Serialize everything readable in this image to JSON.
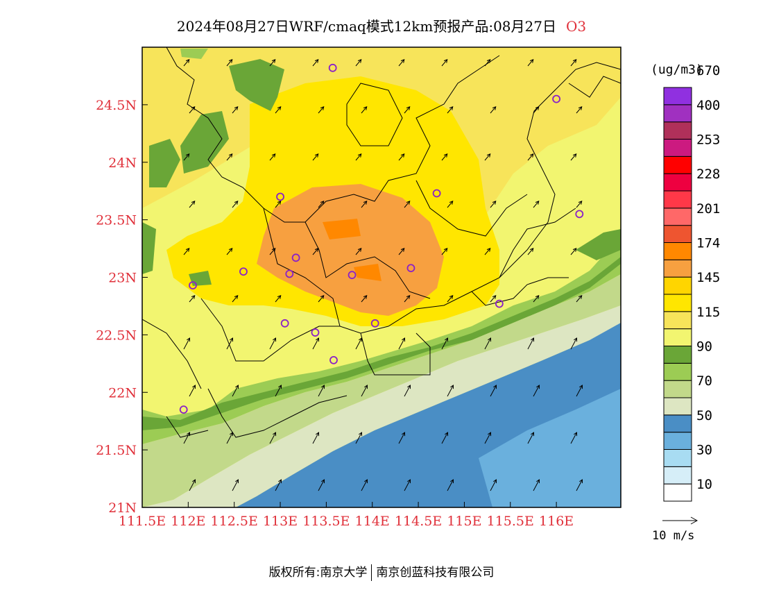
{
  "title": {
    "main": "2024年08月27日WRF/cmaq模式12km预报产品:08月27日",
    "species": "O3"
  },
  "axes": {
    "lon_labels": [
      "111.5E",
      "112E",
      "112.5E",
      "113E",
      "113.5E",
      "114E",
      "114.5E",
      "115E",
      "115.5E",
      "116E"
    ],
    "lon_values": [
      111.5,
      112.0,
      112.5,
      113.0,
      113.5,
      114.0,
      114.5,
      115.0,
      115.5,
      116.0
    ],
    "lat_labels": [
      "21N",
      "21.5N",
      "22N",
      "22.5N",
      "23N",
      "23.5N",
      "24N",
      "24.5N"
    ],
    "lat_values": [
      21.0,
      21.5,
      22.0,
      22.5,
      23.0,
      23.5,
      24.0,
      24.5
    ],
    "lon_range": [
      111.5,
      116.7
    ],
    "lat_range": [
      21.0,
      25.0
    ]
  },
  "legend": {
    "unit": "(ug/m3)",
    "colors": [
      "#ffffff",
      "#d6eef8",
      "#a8dcf2",
      "#6ab0dd",
      "#4a8ec5",
      "#dde6c2",
      "#c2d98a",
      "#9ccc54",
      "#6aa637",
      "#f2f570",
      "#f7e45a",
      "#ffe600",
      "#ffd500",
      "#f7a040",
      "#ff8800",
      "#ee5530",
      "#ff6868",
      "#ff3848",
      "#ee0040",
      "#ff0000",
      "#cc1a80",
      "#b0305a",
      "#a030c0",
      "#9030e0"
    ],
    "labels": [
      "10",
      "30",
      "50",
      "70",
      "90",
      "115",
      "145",
      "174",
      "201",
      "228",
      "253",
      "400",
      "670"
    ],
    "wind_ref": "10 m/s"
  },
  "stations": [
    {
      "lon": 113.57,
      "lat": 24.82
    },
    {
      "lon": 116.0,
      "lat": 24.55
    },
    {
      "lon": 114.7,
      "lat": 23.73
    },
    {
      "lon": 113.0,
      "lat": 23.7
    },
    {
      "lon": 116.25,
      "lat": 23.55
    },
    {
      "lon": 113.17,
      "lat": 23.17
    },
    {
      "lon": 112.6,
      "lat": 23.05
    },
    {
      "lon": 113.1,
      "lat": 23.03
    },
    {
      "lon": 113.78,
      "lat": 23.02
    },
    {
      "lon": 114.42,
      "lat": 23.08
    },
    {
      "lon": 112.05,
      "lat": 22.93
    },
    {
      "lon": 115.38,
      "lat": 22.77
    },
    {
      "lon": 113.05,
      "lat": 22.6
    },
    {
      "lon": 113.38,
      "lat": 22.52
    },
    {
      "lon": 114.03,
      "lat": 22.6
    },
    {
      "lon": 113.58,
      "lat": 22.28
    },
    {
      "lon": 111.95,
      "lat": 21.85
    }
  ],
  "footer": {
    "left": "版权所有:南京大学",
    "right": "南京创蓝科技有限公司"
  }
}
